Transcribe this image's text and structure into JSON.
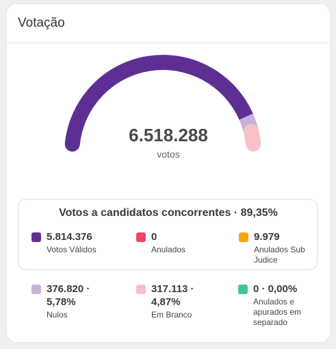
{
  "card": {
    "title": "Votação"
  },
  "gauge": {
    "total": "6.518.288",
    "unit": "votos",
    "colors": {
      "validos": "#5e2f93",
      "nulos": "#c8b1d8",
      "branco": "#f8c0c8"
    },
    "shares": {
      "validos": 0.8935,
      "nulos": 0.0578,
      "branco": 0.0487
    }
  },
  "summary": {
    "title": "Votos a candidatos concorrentes · 89,35%",
    "items": [
      {
        "value": "5.814.376",
        "label": "Votos Válidos",
        "color": "#5e2f93"
      },
      {
        "value": "0",
        "label": "Anulados",
        "color": "#f0455e"
      },
      {
        "value": "9.979",
        "label": "Anulados Sub Judice",
        "color": "#f5a70a"
      }
    ]
  },
  "extra": {
    "items": [
      {
        "value": "376.820 · 5,78%",
        "label": "Nulos",
        "color": "#c8b1d8"
      },
      {
        "value": "317.113 · 4,87%",
        "label": "Em Branco",
        "color": "#f8c0c8"
      },
      {
        "value": "0 · 0,00%",
        "label": "Anulados e apurados em separado",
        "color": "#3fc59a"
      }
    ]
  }
}
